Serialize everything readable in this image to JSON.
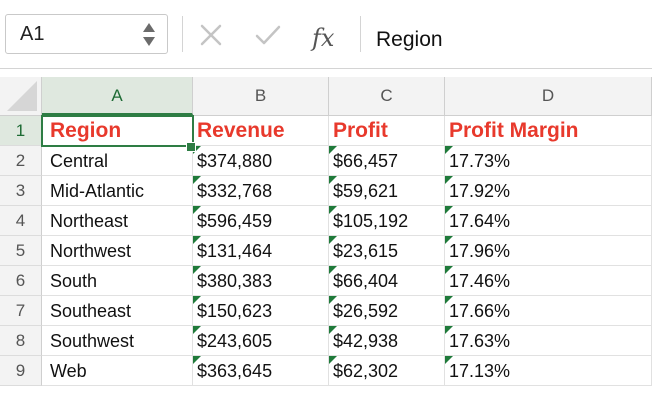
{
  "formula_bar": {
    "name_box": "A1",
    "cancel_icon": "close-icon",
    "enter_icon": "checkmark-icon",
    "fx_label": "fx",
    "content": "Region"
  },
  "columns": [
    "A",
    "B",
    "C",
    "D"
  ],
  "rows": [
    "1",
    "2",
    "3",
    "4",
    "5",
    "6",
    "7",
    "8",
    "9"
  ],
  "header": [
    "Region",
    "Revenue",
    "Profit",
    "Profit Margin"
  ],
  "data": [
    [
      "Central",
      "$374,880",
      "$66,457",
      "17.73%"
    ],
    [
      "Mid-Atlantic",
      "$332,768",
      "$59,621",
      "17.92%"
    ],
    [
      "Northeast",
      "$596,459",
      "$105,192",
      "17.64%"
    ],
    [
      "Northwest",
      "$131,464",
      "$23,615",
      "17.96%"
    ],
    [
      "South",
      "$380,383",
      "$66,404",
      "17.46%"
    ],
    [
      "Southeast",
      "$150,623",
      "$26,592",
      "17.66%"
    ],
    [
      "Southwest",
      "$243,605",
      "$42,938",
      "17.63%"
    ],
    [
      "Web",
      "$363,645",
      "$62,302",
      "17.13%"
    ]
  ],
  "colors": {
    "header_text": "#e8392c",
    "selection": "#2e7d44",
    "error_indicator": "#1f7a3a"
  }
}
